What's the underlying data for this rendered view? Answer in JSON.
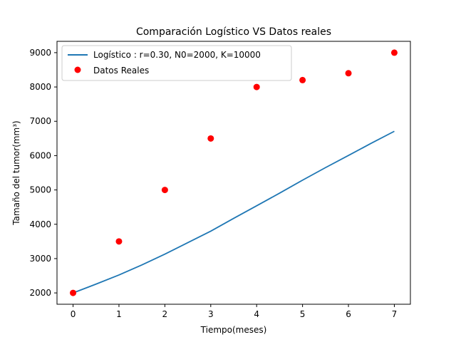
{
  "chart_data": {
    "type": "line",
    "title": "Comparación  Logístico VS Datos reales",
    "xlabel": "Tiempo(meses)",
    "ylabel": "Tamaño del tumor(mm³)",
    "xlim": [
      -0.35,
      7.35
    ],
    "ylim": [
      1670,
      9330
    ],
    "xticks": [
      0,
      1,
      2,
      3,
      4,
      5,
      6,
      7
    ],
    "yticks": [
      2000,
      3000,
      4000,
      5000,
      6000,
      7000,
      8000,
      9000
    ],
    "grid": false,
    "legend_position": "top-left",
    "series": [
      {
        "name": "Logístico : r=0.30, N0=2000, K=10000",
        "kind": "line",
        "color": "#1f77b4",
        "x": [
          0,
          0.5,
          1,
          1.5,
          2,
          2.5,
          3,
          3.5,
          4,
          4.5,
          5,
          5.5,
          6,
          6.5,
          7
        ],
        "y": [
          2000,
          2256,
          2523,
          2815,
          3130,
          3465,
          3799,
          4173,
          4539,
          4907,
          5285,
          5650,
          6005,
          6362,
          6709
        ]
      },
      {
        "name": "Datos Reales",
        "kind": "scatter",
        "color": "#ff0000",
        "x": [
          0,
          1,
          2,
          3,
          4,
          5,
          6,
          7
        ],
        "y": [
          2000,
          3500,
          5000,
          6500,
          8000,
          8200,
          8400,
          9000
        ]
      }
    ]
  }
}
